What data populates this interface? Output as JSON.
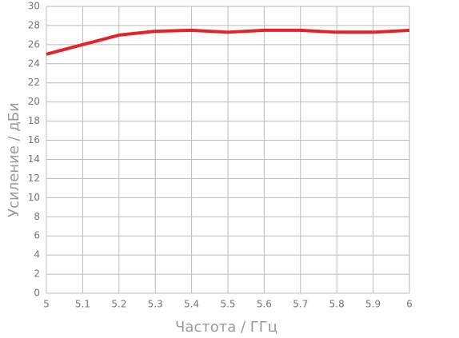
{
  "chart_data": {
    "type": "line",
    "x_label": "Частота / ГГц",
    "y_label": "Усиление / дБи",
    "x": [
      5,
      5.1,
      5.2,
      5.3,
      5.4,
      5.5,
      5.6,
      5.7,
      5.8,
      5.9,
      6
    ],
    "series": [
      {
        "color": "#e8202a",
        "values": [
          25,
          26,
          27,
          27.4,
          27.5,
          27.3,
          27.5,
          27.5,
          27.3,
          27.3,
          27.5
        ]
      }
    ],
    "xlim": [
      5,
      6
    ],
    "xticks": [
      5,
      5.1,
      5.2,
      5.3,
      5.4,
      5.5,
      5.6,
      5.7,
      5.8,
      5.9,
      6
    ],
    "ylim": [
      0,
      30
    ],
    "yticks": [
      0,
      2,
      4,
      6,
      8,
      10,
      12,
      14,
      16,
      18,
      20,
      22,
      24,
      26,
      28,
      30
    ],
    "grid": true
  }
}
